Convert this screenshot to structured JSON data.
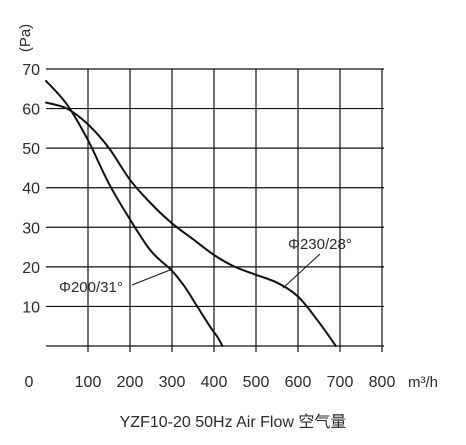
{
  "chart_data": {
    "type": "line",
    "title": "YZF10-20 50Hz Air Flow 空气量",
    "xlabel": "m³/h",
    "ylabel": "(Pa)",
    "xlim": [
      0,
      800
    ],
    "ylim": [
      0,
      70
    ],
    "x_ticks": [
      0,
      100,
      200,
      300,
      400,
      500,
      600,
      700,
      800
    ],
    "y_ticks": [
      10,
      20,
      30,
      40,
      50,
      60,
      70
    ],
    "grid": true,
    "series": [
      {
        "name": "Φ200/31°",
        "points": [
          [
            0,
            67
          ],
          [
            50,
            61
          ],
          [
            100,
            52
          ],
          [
            150,
            41
          ],
          [
            200,
            32
          ],
          [
            250,
            24
          ],
          [
            300,
            19
          ],
          [
            330,
            15
          ],
          [
            360,
            10
          ],
          [
            390,
            5
          ],
          [
            410,
            2
          ],
          [
            420,
            0
          ]
        ]
      },
      {
        "name": "Φ230/28°",
        "points": [
          [
            0,
            61.5
          ],
          [
            50,
            60
          ],
          [
            100,
            56
          ],
          [
            150,
            50
          ],
          [
            200,
            42
          ],
          [
            250,
            36
          ],
          [
            300,
            31
          ],
          [
            350,
            27
          ],
          [
            400,
            23
          ],
          [
            450,
            20
          ],
          [
            500,
            18
          ],
          [
            550,
            16
          ],
          [
            600,
            12.5
          ],
          [
            650,
            6
          ],
          [
            690,
            0
          ]
        ]
      }
    ]
  }
}
